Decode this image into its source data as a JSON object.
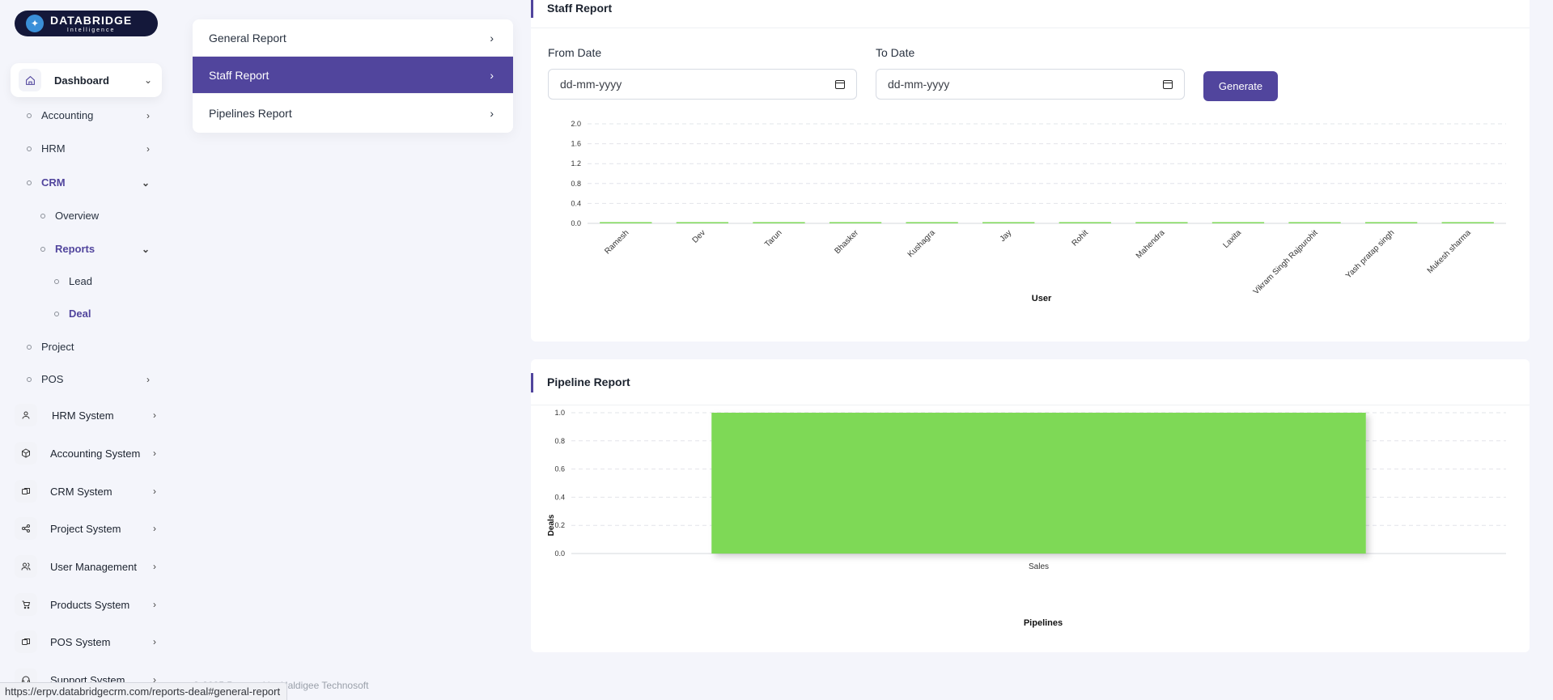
{
  "brand": {
    "name": "DATABRIDGE",
    "tagline": "Intelligence"
  },
  "sidebar": {
    "dashboard": "Dashboard",
    "sub_items": [
      {
        "label": "Accounting"
      },
      {
        "label": "HRM"
      },
      {
        "label": "CRM"
      },
      {
        "label": "Overview"
      },
      {
        "label": "Reports"
      },
      {
        "label": "Lead"
      },
      {
        "label": "Deal"
      },
      {
        "label": "Project"
      },
      {
        "label": "POS"
      }
    ],
    "systems": [
      {
        "label": "HRM System",
        "icon": "user-icon"
      },
      {
        "label": "Accounting System",
        "icon": "box-icon"
      },
      {
        "label": "CRM System",
        "icon": "layers-icon"
      },
      {
        "label": "Project System",
        "icon": "share-icon"
      },
      {
        "label": "User Management",
        "icon": "users-icon"
      },
      {
        "label": "Products System",
        "icon": "cart-icon"
      },
      {
        "label": "POS System",
        "icon": "layers-icon"
      },
      {
        "label": "Support System",
        "icon": "headset-icon"
      }
    ]
  },
  "report_menu": {
    "items": [
      "General Report",
      "Staff Report",
      "Pipelines Report"
    ],
    "active": "Staff Report"
  },
  "staff_report": {
    "title": "Staff Report",
    "from_label": "From Date",
    "to_label": "To Date",
    "from_value": "dd-mm-yyyy",
    "to_value": "dd-mm-yyyy",
    "generate_label": "Generate"
  },
  "pipeline_report": {
    "title": "Pipeline Report"
  },
  "footer": "© 2025 Powered by Haldigee Technosoft",
  "status_url": "https://erpv.databridgecrm.com/reports-deal#general-report",
  "colors": {
    "accent": "#51459d",
    "bar": "#7ed957"
  },
  "chart_data": [
    {
      "type": "bar",
      "categories": [
        "Ramesh",
        "Dev",
        "Tarun",
        "Bhasker",
        "Kushagra",
        "Jay",
        "Rohit",
        "Mahendra",
        "Laxita",
        "Vikram Singh Rajpurohit",
        "Yash pratap singh",
        "Mukesh sharma"
      ],
      "values": [
        0,
        0,
        0,
        0,
        0,
        0,
        0,
        0,
        0,
        0,
        0,
        0
      ],
      "xlabel": "User",
      "ylabel": "",
      "ylim": [
        0,
        2.0
      ],
      "yticks": [
        "0.0",
        "0.4",
        "0.8",
        "1.2",
        "1.6",
        "2.0"
      ],
      "grid": true
    },
    {
      "type": "bar",
      "categories": [
        "Sales"
      ],
      "values": [
        1
      ],
      "xlabel": "Pipelines",
      "ylabel": "Deals",
      "ylim": [
        0,
        1.0
      ],
      "yticks": [
        "0.0",
        "0.2",
        "0.4",
        "0.6",
        "0.8",
        "1.0"
      ],
      "grid": true
    }
  ]
}
